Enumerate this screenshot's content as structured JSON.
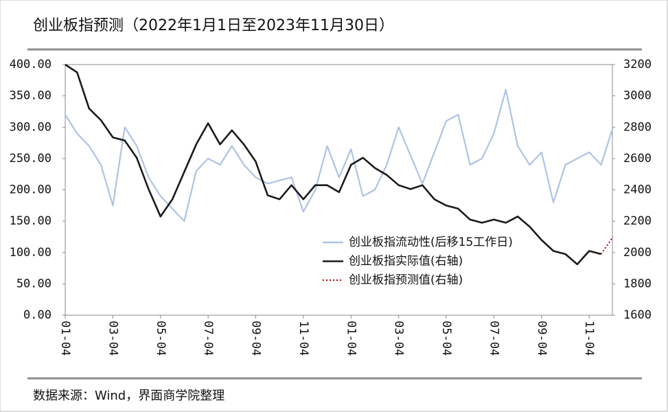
{
  "chart_data": {
    "type": "line",
    "title": "创业板指预测（2022年1月1日至2023年11月30日）",
    "source": "数据来源：Wind，界面商学院整理",
    "categories": [
      "01-04",
      null,
      null,
      null,
      "03-04",
      null,
      null,
      null,
      "05-04",
      null,
      null,
      null,
      "07-04",
      null,
      null,
      null,
      "09-04",
      null,
      null,
      null,
      "11-04",
      null,
      null,
      null,
      "01-04",
      null,
      null,
      null,
      "03-04",
      null,
      null,
      null,
      "05-04",
      null,
      null,
      null,
      "07-04",
      null,
      null,
      null,
      "09-04",
      null,
      null,
      null,
      "11-04",
      null,
      null
    ],
    "series": [
      {
        "name": "创业板指流动性(后移15工作日)",
        "color": "#aec3e3",
        "axis": "y",
        "values": [
          320,
          290,
          270,
          240,
          175,
          300,
          270,
          220,
          190,
          170,
          150,
          230,
          250,
          240,
          270,
          240,
          220,
          210,
          215,
          220,
          165,
          200,
          270,
          220,
          265,
          190,
          200,
          240,
          300,
          255,
          210,
          260,
          310,
          320,
          240,
          250,
          290,
          360,
          270,
          240,
          260,
          180,
          240,
          250,
          260,
          240,
          300
        ]
      },
      {
        "name": "创业板指实际值(右轴)",
        "color": "#1a1a1a",
        "axis": "y2",
        "values": [
          3200,
          3150,
          2920,
          2845,
          2735,
          2715,
          2605,
          2405,
          2230,
          2340,
          2515,
          2690,
          2825,
          2690,
          2780,
          2690,
          2580,
          2365,
          2340,
          2430,
          2340,
          2430,
          2430,
          2385,
          2560,
          2605,
          2540,
          2495,
          2430,
          2405,
          2430,
          2340,
          2300,
          2280,
          2210,
          2190,
          2210,
          2190,
          2230,
          2165,
          2080,
          2010,
          1990,
          1925,
          2010,
          1990,
          null
        ]
      },
      {
        "name": "创业板指预测值(右轴)",
        "color": "#c00000",
        "axis": "y2",
        "dash": true,
        "values": [
          null,
          null,
          null,
          null,
          null,
          null,
          null,
          null,
          null,
          null,
          null,
          null,
          null,
          null,
          null,
          null,
          null,
          null,
          null,
          null,
          null,
          null,
          null,
          null,
          null,
          null,
          null,
          null,
          null,
          null,
          null,
          null,
          null,
          null,
          null,
          null,
          null,
          null,
          null,
          null,
          null,
          null,
          null,
          null,
          null,
          1990,
          2100
        ]
      }
    ],
    "ylim": [
      0,
      400
    ],
    "yticks": [
      {
        "value": 0,
        "label": "0.00"
      },
      {
        "value": 50,
        "label": "50.00"
      },
      {
        "value": 100,
        "label": "100.00"
      },
      {
        "value": 150,
        "label": "150.00"
      },
      {
        "value": 200,
        "label": "200.00"
      },
      {
        "value": 250,
        "label": "250.00"
      },
      {
        "value": 300,
        "label": "300.00"
      },
      {
        "value": 350,
        "label": "350.00"
      },
      {
        "value": 400,
        "label": "400.00"
      }
    ],
    "y2lim": [
      1600,
      3200
    ],
    "y2ticks": [
      1600,
      1800,
      2000,
      2200,
      2400,
      2600,
      2800,
      3000,
      3200
    ],
    "legend": "right"
  }
}
